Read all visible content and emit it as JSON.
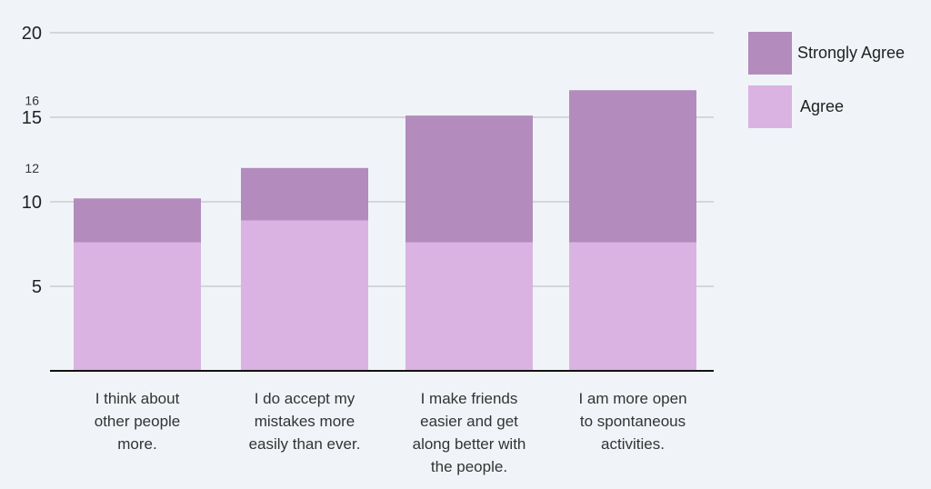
{
  "chart_data": {
    "type": "bar",
    "stacked": true,
    "categories": [
      [
        "I think about",
        "other people",
        "more."
      ],
      [
        "I do accept my",
        "mistakes more",
        "easily than ever."
      ],
      [
        "I make friends",
        "easier and get",
        "along better with",
        "the people."
      ],
      [
        "I am more open",
        "to spontaneous",
        "activities."
      ]
    ],
    "series": [
      {
        "name": "Agree",
        "values": [
          7.6,
          8.9,
          7.6,
          7.6
        ],
        "color": "#dab3e3"
      },
      {
        "name": "Strongly Agree",
        "values": [
          2.6,
          3.1,
          7.5,
          9.0
        ],
        "color": "#b38bbd"
      }
    ],
    "yticks": [
      5,
      10,
      15,
      20
    ],
    "ylim": [
      0,
      20
    ],
    "annotations": [
      {
        "y": 16,
        "text": "16"
      },
      {
        "y": 12,
        "text": "12"
      }
    ],
    "grid": true,
    "legend_position": "right",
    "legend_order": [
      "Strongly Agree",
      "Agree"
    ]
  }
}
